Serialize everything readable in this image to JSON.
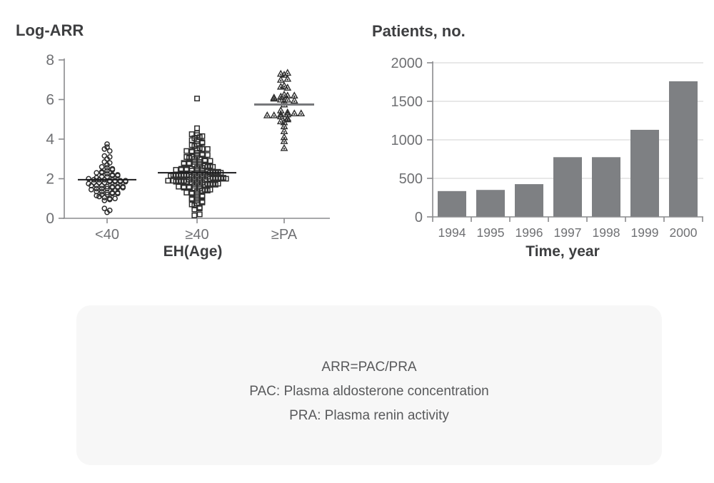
{
  "colors": {
    "background": "#ffffff",
    "axis": "#8a8b8e",
    "tick_text": "#6f7073",
    "title_text": "#3d3e40",
    "grid": "#d9dadb",
    "marker": "#2d2d2d",
    "bar": "#7e8083",
    "note_box_bg": "#f7f7f7",
    "note_text": "#58595b"
  },
  "note_box": {
    "lines": [
      "ARR=PAC/PRA",
      "PAC: Plasma aldosterone concentration",
      "PRA: Plasma renin activity"
    ]
  },
  "chart_data": [
    {
      "type": "scatter",
      "variant": "strip-plot",
      "title": "Log-ARR",
      "xlabel": "EH(Age)",
      "ylabel": "",
      "ylim": [
        0,
        8
      ],
      "yticks": [
        0,
        2,
        4,
        6,
        8
      ],
      "grid": false,
      "legend": "none",
      "groups": [
        {
          "label": "<40",
          "marker": "circle",
          "center_line": 1.95,
          "line_color": "#1c1c1e",
          "line_width": 2,
          "values": [
            0.3,
            0.4,
            0.5,
            0.9,
            0.95,
            1.0,
            1.0,
            1.05,
            1.1,
            1.15,
            1.2,
            1.2,
            1.25,
            1.25,
            1.3,
            1.3,
            1.3,
            1.35,
            1.35,
            1.45,
            1.5,
            1.5,
            1.5,
            1.55,
            1.55,
            1.55,
            1.6,
            1.6,
            1.6,
            1.6,
            1.65,
            1.65,
            1.65,
            1.75,
            1.8,
            1.8,
            1.8,
            1.85,
            1.85,
            1.85,
            1.85,
            1.9,
            1.9,
            1.9,
            1.9,
            1.95,
            1.95,
            1.95,
            2.0,
            2.05,
            2.1,
            2.1,
            2.15,
            2.15,
            2.2,
            2.2,
            2.25,
            2.3,
            2.3,
            2.35,
            2.4,
            2.45,
            2.5,
            2.55,
            2.6,
            2.7,
            2.8,
            2.85,
            3.0,
            3.1,
            3.15,
            3.4,
            3.5,
            3.6,
            3.75
          ]
        },
        {
          "label": "≥40",
          "marker": "square",
          "center_line": 2.3,
          "line_color": "#1c1c1e",
          "line_width": 2,
          "values": [
            6.05,
            4.55,
            4.3,
            4.25,
            4.2,
            4.15,
            4.1,
            4.05,
            3.95,
            3.9,
            3.85,
            3.8,
            3.75,
            3.7,
            3.65,
            3.55,
            3.5,
            3.5,
            3.45,
            3.4,
            3.4,
            3.35,
            3.3,
            3.25,
            3.2,
            3.2,
            3.15,
            3.1,
            3.1,
            3.05,
            3.0,
            3.0,
            2.95,
            2.9,
            2.9,
            2.85,
            2.85,
            2.8,
            2.8,
            2.75,
            2.75,
            2.7,
            2.7,
            2.65,
            2.65,
            2.6,
            2.6,
            2.55,
            2.55,
            2.5,
            2.5,
            2.5,
            2.45,
            2.45,
            2.45,
            2.4,
            2.4,
            2.4,
            2.35,
            2.35,
            2.35,
            2.3,
            2.3,
            2.3,
            2.25,
            2.25,
            2.25,
            2.2,
            2.2,
            2.2,
            2.2,
            2.15,
            2.15,
            2.15,
            2.15,
            2.1,
            2.1,
            2.1,
            2.1,
            2.05,
            2.05,
            2.05,
            2.0,
            2.0,
            2.0,
            2.0,
            1.95,
            1.95,
            1.95,
            1.95,
            1.9,
            1.9,
            1.9,
            1.9,
            1.85,
            1.85,
            1.85,
            1.8,
            1.8,
            1.8,
            1.75,
            1.75,
            1.75,
            1.7,
            1.7,
            1.7,
            1.65,
            1.65,
            1.6,
            1.6,
            1.6,
            1.55,
            1.55,
            1.5,
            1.5,
            1.45,
            1.45,
            1.4,
            1.4,
            1.35,
            1.3,
            1.3,
            1.25,
            1.2,
            1.15,
            1.1,
            1.05,
            1.0,
            0.95,
            0.9,
            0.85,
            0.8,
            0.75,
            0.7,
            0.65,
            0.55,
            0.5,
            0.45,
            0.2,
            0.15
          ]
        },
        {
          "label": "≥PA",
          "marker": "triangle",
          "center_line": 5.75,
          "line_color": "#77787b",
          "line_width": 3,
          "values": [
            7.35,
            7.3,
            7.25,
            7.05,
            7.0,
            6.7,
            6.65,
            6.6,
            6.25,
            6.2,
            6.2,
            6.15,
            6.1,
            6.05,
            6.0,
            6.0,
            5.95,
            5.9,
            5.75,
            5.45,
            5.35,
            5.3,
            5.3,
            5.25,
            5.25,
            5.2,
            5.2,
            5.15,
            5.05,
            5.0,
            4.9,
            4.85,
            4.65,
            4.4,
            4.1,
            3.9,
            3.55
          ]
        }
      ]
    },
    {
      "type": "bar",
      "title": "Patients, no.",
      "xlabel": "Time, year",
      "ylabel": "",
      "categories": [
        "1994",
        "1995",
        "1996",
        "1997",
        "1998",
        "1999",
        "2000"
      ],
      "values": [
        335,
        350,
        425,
        775,
        775,
        1130,
        1760
      ],
      "ylim": [
        0,
        2000
      ],
      "yticks": [
        0,
        500,
        1000,
        1500,
        2000
      ],
      "grid": true,
      "legend": "none"
    }
  ]
}
